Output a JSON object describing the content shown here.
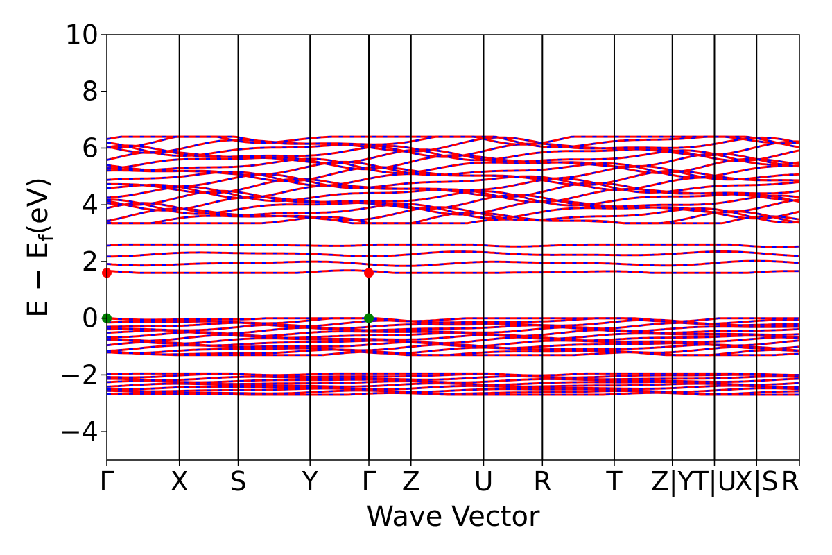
{
  "chart_data": {
    "type": "line",
    "xlabel": "Wave Vector",
    "ylabel": "E − E",
    "ylabel_subscript": "f",
    "ylabel_unit": "(eV)",
    "ylim": [
      -5,
      10
    ],
    "yticks": [
      -4,
      -2,
      0,
      2,
      4,
      6,
      8,
      10
    ],
    "ytick_labels": [
      "−4",
      "−2",
      "0",
      "2",
      "4",
      "6",
      "8",
      "10"
    ],
    "kpoint_labels": [
      "Γ",
      "X",
      "S",
      "Y",
      "Γ",
      "Z",
      "U",
      "R",
      "T",
      "Z|Y",
      "T|U",
      "X|S",
      "R"
    ],
    "kpoint_positions": [
      0,
      1,
      1.81,
      2.8,
      3.61,
      4.19,
      5.19,
      6.0,
      6.99,
      7.79,
      8.37,
      8.95,
      9.54
    ],
    "grid": "vertical lines at high-symmetry k-points",
    "colors": {
      "band_primary": "#ff0000",
      "band_dash": "#0000ff",
      "cbm_marker": "#ff0000",
      "vbm_marker": "#008000",
      "axis": "#000000"
    },
    "band_groups": [
      {
        "name": "",
        "emin": -2.7,
        "emax": -1.95,
        "count": 10
      },
      {
        "name": "",
        "emin": -1.3,
        "emax": 0.0,
        "count": 16
      },
      {
        "name": "",
        "emin": 1.6,
        "emax": 2.6,
        "count": 4
      },
      {
        "name": "",
        "emin": 3.35,
        "emax": 6.4,
        "count": 22
      }
    ],
    "markers": [
      {
        "type": "CBM",
        "k": 0,
        "energy": 1.6
      },
      {
        "type": "CBM",
        "k": 3.61,
        "energy": 1.6
      },
      {
        "type": "VBM",
        "k": 0,
        "energy": 0.0
      },
      {
        "type": "VBM",
        "k": 3.61,
        "energy": 0.0
      }
    ]
  }
}
